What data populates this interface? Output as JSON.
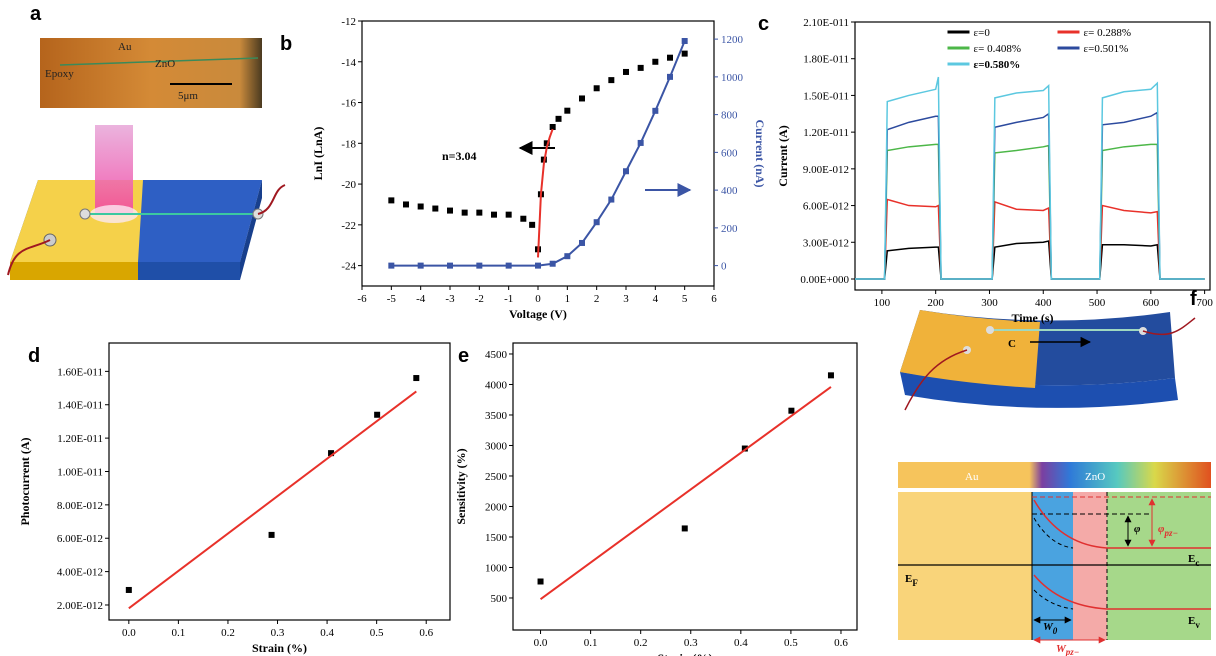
{
  "chart_data": [
    {
      "type": "scatter",
      "panel_label": "b",
      "xlabel": "Voltage (V)",
      "ylabel": "LnI (LnA)",
      "y2label": "Current (nA)",
      "annotation": "n=3.04",
      "xlim": [
        -6,
        6
      ],
      "xticks": [
        -6,
        -5,
        -4,
        -3,
        -2,
        -1,
        0,
        1,
        2,
        3,
        4,
        5,
        6
      ],
      "ylim": [
        -25,
        -12
      ],
      "yticks": [
        -24,
        -22,
        -20,
        -18,
        -16,
        -14,
        -12
      ],
      "y2lim": [
        -108,
        1296
      ],
      "y2ticks": [
        0,
        200,
        400,
        600,
        800,
        1000,
        1200
      ],
      "series": [
        {
          "color": "#000000",
          "marker": "square",
          "line": false,
          "x": [
            -5,
            -4.5,
            -4,
            -3.5,
            -3,
            -2.5,
            -2,
            -1.5,
            -1,
            -0.5,
            -0.2,
            0,
            0.1,
            0.2,
            0.3,
            0.5,
            0.7,
            1,
            1.5,
            2,
            2.5,
            3,
            3.5,
            4,
            4.5,
            5
          ],
          "values": [
            -20.8,
            -21.0,
            -21.1,
            -21.2,
            -21.3,
            -21.4,
            -21.4,
            -21.5,
            -21.5,
            -21.7,
            -22.0,
            -23.2,
            -20.5,
            -18.8,
            -18.0,
            -17.2,
            -16.8,
            -16.4,
            -15.8,
            -15.3,
            -14.9,
            -14.5,
            -14.3,
            -14.0,
            -13.8,
            -13.6
          ]
        },
        {
          "color": "#e8312a",
          "marker": "none",
          "line": true,
          "x": [
            0,
            0.1,
            0.2,
            0.3,
            0.4,
            0.5
          ],
          "values": [
            -23.6,
            -20.5,
            -19.0,
            -18.2,
            -17.7,
            -17.3
          ]
        },
        {
          "color": "#3b55a5",
          "marker": "square",
          "line": true,
          "axis": "y2",
          "x": [
            -5,
            -4,
            -3,
            -2,
            -1,
            0,
            0.5,
            1,
            1.5,
            2,
            2.5,
            3,
            3.5,
            4,
            4.5,
            5
          ],
          "values": [
            0,
            0,
            0,
            0,
            0,
            0,
            10,
            50,
            120,
            230,
            350,
            500,
            650,
            820,
            1000,
            1190
          ]
        }
      ]
    },
    {
      "type": "line",
      "panel_label": "c",
      "xlabel": "Time (s)",
      "ylabel": "Current (A)",
      "legend": "upper center",
      "xlim": [
        50,
        710
      ],
      "xticks": [
        100,
        200,
        300,
        400,
        500,
        600,
        700
      ],
      "ylim": [
        -9e-13,
        2.1e-11
      ],
      "yticks": [
        {
          "value": 0,
          "label": "0.00E+000"
        },
        {
          "value": 3e-12,
          "label": "3.00E-012"
        },
        {
          "value": 6e-12,
          "label": "6.00E-012"
        },
        {
          "value": 9e-12,
          "label": "9.00E-012"
        },
        {
          "value": 1.2e-11,
          "label": "1.20E-011"
        },
        {
          "value": 1.5e-11,
          "label": "1.50E-011"
        },
        {
          "value": 1.8e-11,
          "label": "1.80E-011"
        },
        {
          "value": 2.1e-11,
          "label": "2.10E-011"
        }
      ],
      "x": [
        50,
        100,
        105,
        110,
        150,
        200,
        205,
        210,
        250,
        300,
        305,
        310,
        350,
        400,
        410,
        415,
        450,
        500,
        505,
        510,
        550,
        600,
        612,
        617,
        650,
        700
      ],
      "series": [
        {
          "name": "ε=0",
          "color": "#000000",
          "values": [
            0,
            0,
            0,
            2.3e-12,
            2.5e-12,
            2.6e-12,
            2.6e-12,
            0,
            0,
            0,
            0,
            2.6e-12,
            2.9e-12,
            3e-12,
            3.1e-12,
            0,
            0,
            0,
            0,
            2.8e-12,
            2.8e-12,
            2.7e-12,
            2.8e-12,
            0,
            0,
            0
          ]
        },
        {
          "name": "ε= 0.288%",
          "color": "#e8312a",
          "values": [
            0,
            0,
            0,
            6.5e-12,
            6e-12,
            5.9e-12,
            6e-12,
            0,
            0,
            0,
            0,
            6.3e-12,
            5.7e-12,
            5.6e-12,
            5.8e-12,
            0,
            0,
            0,
            0,
            6e-12,
            5.6e-12,
            5.4e-12,
            5.5e-12,
            0,
            0,
            0
          ]
        },
        {
          "name": "ε= 0.408%",
          "color": "#4cb748",
          "values": [
            0,
            0,
            0,
            1.05e-11,
            1.08e-11,
            1.1e-11,
            1.1e-11,
            0,
            0,
            0,
            0,
            1.03e-11,
            1.05e-11,
            1.08e-11,
            1.09e-11,
            0,
            0,
            0,
            0,
            1.05e-11,
            1.08e-11,
            1.1e-11,
            1.1e-11,
            0,
            0,
            0
          ]
        },
        {
          "name": "ε=0.501%",
          "color": "#2c4a9e",
          "values": [
            0,
            0,
            0,
            1.22e-11,
            1.28e-11,
            1.33e-11,
            1.33e-11,
            0,
            0,
            0,
            0,
            1.24e-11,
            1.28e-11,
            1.32e-11,
            1.35e-11,
            0,
            0,
            0,
            0,
            1.26e-11,
            1.28e-11,
            1.33e-11,
            1.36e-11,
            0,
            0,
            0
          ]
        },
        {
          "name": "ε=0.580%",
          "color": "#5cc8e0",
          "values": [
            0,
            0,
            0,
            1.45e-11,
            1.5e-11,
            1.55e-11,
            1.65e-11,
            0,
            0,
            0,
            0,
            1.48e-11,
            1.52e-11,
            1.54e-11,
            1.58e-11,
            0,
            0,
            0,
            0,
            1.48e-11,
            1.53e-11,
            1.55e-11,
            1.6e-11,
            0,
            0,
            0
          ]
        }
      ]
    },
    {
      "type": "scatter",
      "panel_label": "d",
      "xlabel": "Strain (%)",
      "ylabel": "Photocurrent (A)",
      "xlim": [
        -0.04,
        0.648
      ],
      "xticks": [
        {
          "value": 0,
          "label": "0.0"
        },
        0.1,
        0.2,
        0.3,
        0.4,
        0.5,
        0.6
      ],
      "ylim": [
        1.1e-12,
        1.77e-11
      ],
      "yticks": [
        {
          "value": 2e-12,
          "label": "2.00E-012"
        },
        {
          "value": 4e-12,
          "label": "4.00E-012"
        },
        {
          "value": 6e-12,
          "label": "6.00E-012"
        },
        {
          "value": 8e-12,
          "label": "8.00E-012"
        },
        {
          "value": 1e-11,
          "label": "1.00E-011"
        },
        {
          "value": 1.2e-11,
          "label": "1.20E-011"
        },
        {
          "value": 1.4e-11,
          "label": "1.40E-011"
        },
        {
          "value": 1.6e-11,
          "label": "1.60E-011"
        }
      ],
      "series": [
        {
          "color": "#000000",
          "marker": "square",
          "line": false,
          "x": [
            0,
            0.288,
            0.408,
            0.501,
            0.58
          ],
          "values": [
            2.9e-12,
            6.2e-12,
            1.11e-11,
            1.34e-11,
            1.56e-11
          ]
        },
        {
          "color": "#e8312a",
          "marker": "none",
          "line": true,
          "x": [
            0,
            0.58
          ],
          "values": [
            1.8e-12,
            1.48e-11
          ]
        }
      ]
    },
    {
      "type": "scatter",
      "panel_label": "e",
      "xlabel": "Strain (%)",
      "ylabel": "Sensitivity (%)",
      "xlim": [
        -0.055,
        0.632
      ],
      "xticks": [
        {
          "value": 0,
          "label": "0.0"
        },
        0.1,
        0.2,
        0.3,
        0.4,
        0.5,
        0.6
      ],
      "ylim": [
        -25,
        4680
      ],
      "yticks": [
        500,
        1000,
        1500,
        2000,
        2500,
        3000,
        3500,
        4000,
        4500
      ],
      "series": [
        {
          "color": "#000000",
          "marker": "square",
          "line": false,
          "x": [
            0,
            0.288,
            0.408,
            0.501,
            0.58
          ],
          "values": [
            770,
            1640,
            2950,
            3570,
            4150
          ]
        },
        {
          "color": "#e8312a",
          "marker": "none",
          "line": true,
          "x": [
            0,
            0.58
          ],
          "values": [
            480,
            3960
          ]
        }
      ]
    }
  ],
  "panel_a": {
    "label": "a",
    "micrograph_labels": [
      "Au",
      "Epoxy",
      "ZnO"
    ],
    "scale_bar": "5μm"
  },
  "panel_f": {
    "label": "f",
    "device_label": "C",
    "band_bar": [
      "Au",
      "ZnO"
    ],
    "levels": {
      "fermi": {
        "main": "E",
        "sub": "F"
      },
      "conduction": {
        "main": "E",
        "sub": "c"
      },
      "valence": {
        "main": "E",
        "sub": "v"
      }
    },
    "barrier": {
      "main": "φ"
    },
    "barrier_pz": {
      "main": "φ",
      "sub": "pz−"
    },
    "width_0": {
      "main": "W",
      "sub": "0"
    },
    "width_pz": {
      "main": "W",
      "sub": "pz−"
    }
  }
}
